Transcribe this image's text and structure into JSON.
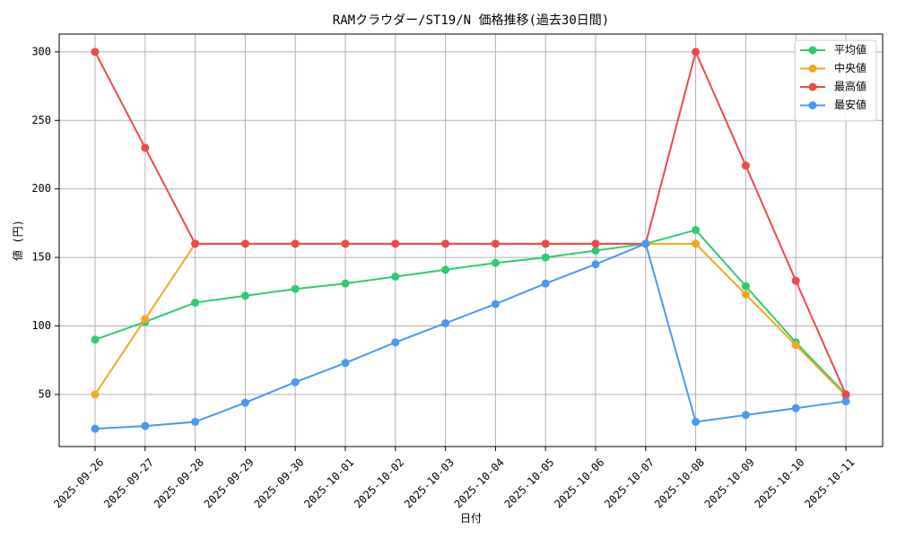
{
  "chart_data": {
    "type": "line",
    "title": "RAMクラウダー/ST19/N 価格推移(過去30日間)",
    "xlabel": "日付",
    "ylabel": "値 (円)",
    "categories": [
      "2025-09-26",
      "2025-09-27",
      "2025-09-28",
      "2025-09-29",
      "2025-09-30",
      "2025-10-01",
      "2025-10-02",
      "2025-10-03",
      "2025-10-04",
      "2025-10-05",
      "2025-10-06",
      "2025-10-07",
      "2025-10-08",
      "2025-10-09",
      "2025-10-10",
      "2025-10-11"
    ],
    "y_ticks": [
      50,
      100,
      150,
      200,
      250,
      300
    ],
    "ylim": [
      12,
      313
    ],
    "grid": true,
    "legend_position": "top-right",
    "series": [
      {
        "name": "平均値",
        "color": "#2ecc71",
        "values": [
          90,
          103,
          117,
          122,
          127,
          131,
          136,
          141,
          146,
          150,
          155,
          160,
          170,
          129,
          88,
          50
        ]
      },
      {
        "name": "中央値",
        "color": "#f5a623",
        "values": [
          50,
          105,
          160,
          160,
          160,
          160,
          160,
          160,
          160,
          160,
          160,
          160,
          160,
          123,
          86,
          49
        ]
      },
      {
        "name": "最高値",
        "color": "#f04848",
        "values": [
          300,
          230,
          160,
          160,
          160,
          160,
          160,
          160,
          160,
          160,
          160,
          160,
          300,
          217,
          133,
          50
        ]
      },
      {
        "name": "最安値",
        "color": "#4a98f5",
        "values": [
          25,
          27,
          30,
          44,
          59,
          73,
          88,
          102,
          116,
          131,
          145,
          160,
          30,
          35,
          40,
          45
        ]
      }
    ]
  }
}
